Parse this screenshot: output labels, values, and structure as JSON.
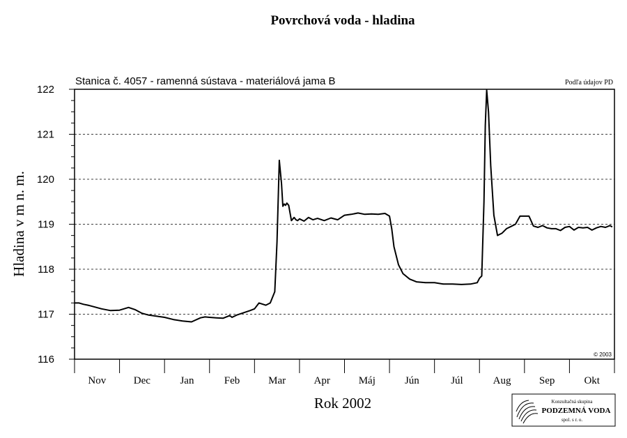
{
  "chart_data": {
    "type": "line",
    "title": "Povrchová voda - hladina",
    "subtitle": "Stanica č. 4057 - ramenná sústava - materiálová jama B",
    "source_note": "Podľa údajov PD",
    "copyright": "© 2003",
    "xlabel": "Rok 2002",
    "ylabel": "Hladina v m n. m.",
    "ylim": [
      116,
      122
    ],
    "yticks": [
      "116",
      "117",
      "118",
      "119",
      "120",
      "121",
      "122"
    ],
    "months": [
      "Nov",
      "Dec",
      "Jan",
      "Feb",
      "Mar",
      "Apr",
      "Máj",
      "Jún",
      "Júl",
      "Aug",
      "Sep",
      "Okt"
    ],
    "grid": "horizontal dashed",
    "series": [
      {
        "x": [
          0.0,
          0.1,
          0.2,
          0.3,
          0.45,
          0.6,
          0.8,
          1.0,
          1.2,
          1.35,
          1.5,
          1.65,
          1.8,
          2.0,
          2.2,
          2.4,
          2.6,
          2.8,
          2.9,
          3.0,
          3.15,
          3.3,
          3.45,
          3.5,
          3.6,
          3.75,
          3.9,
          4.0,
          4.1,
          4.25,
          4.35,
          4.45,
          4.5,
          4.55,
          4.6,
          4.63,
          4.66,
          4.69,
          4.72,
          4.76,
          4.82,
          4.88,
          4.92,
          4.96,
          5.0,
          5.1,
          5.2,
          5.3,
          5.4,
          5.55,
          5.7,
          5.85,
          6.0,
          6.15,
          6.3,
          6.45,
          6.6,
          6.75,
          6.9,
          7.0,
          7.05,
          7.1,
          7.2,
          7.3,
          7.45,
          7.6,
          7.8,
          8.0,
          8.2,
          8.4,
          8.6,
          8.8,
          8.95,
          9.0,
          9.05,
          9.1,
          9.13,
          9.16,
          9.2,
          9.25,
          9.32,
          9.4,
          9.5,
          9.6,
          9.7,
          9.8,
          9.9,
          10.0,
          10.1,
          10.2,
          10.3,
          10.4,
          10.5,
          10.6,
          10.7,
          10.8,
          10.9,
          11.0,
          11.1,
          11.2,
          11.3,
          11.4,
          11.5,
          11.6,
          11.7,
          11.8,
          11.9,
          11.95
        ],
        "y": [
          117.25,
          117.25,
          117.22,
          117.2,
          117.16,
          117.12,
          117.08,
          117.09,
          117.15,
          117.1,
          117.02,
          116.98,
          116.96,
          116.93,
          116.88,
          116.85,
          116.83,
          116.92,
          116.94,
          116.93,
          116.92,
          116.91,
          116.97,
          116.93,
          116.98,
          117.03,
          117.08,
          117.12,
          117.25,
          117.2,
          117.25,
          117.5,
          118.6,
          120.42,
          119.9,
          119.4,
          119.45,
          119.42,
          119.47,
          119.42,
          119.08,
          119.15,
          119.1,
          119.08,
          119.12,
          119.07,
          119.15,
          119.1,
          119.13,
          119.08,
          119.14,
          119.1,
          119.2,
          119.22,
          119.25,
          119.22,
          119.23,
          119.22,
          119.24,
          119.18,
          118.9,
          118.5,
          118.1,
          117.9,
          117.78,
          117.72,
          117.7,
          117.7,
          117.67,
          117.67,
          117.66,
          117.67,
          117.7,
          117.8,
          117.85,
          119.5,
          121.2,
          121.98,
          121.5,
          120.3,
          119.2,
          118.75,
          118.8,
          118.9,
          118.95,
          119.0,
          119.18,
          119.18,
          119.18,
          118.96,
          118.93,
          118.97,
          118.92,
          118.9,
          118.9,
          118.86,
          118.93,
          118.95,
          118.87,
          118.93,
          118.92,
          118.93,
          118.87,
          118.92,
          118.95,
          118.93,
          118.97,
          118.94
        ]
      }
    ]
  },
  "logo": {
    "line1": "Konzultačná skupina",
    "line2": "PODZEMNÁ VODA",
    "line3": "spol. s r. o."
  }
}
